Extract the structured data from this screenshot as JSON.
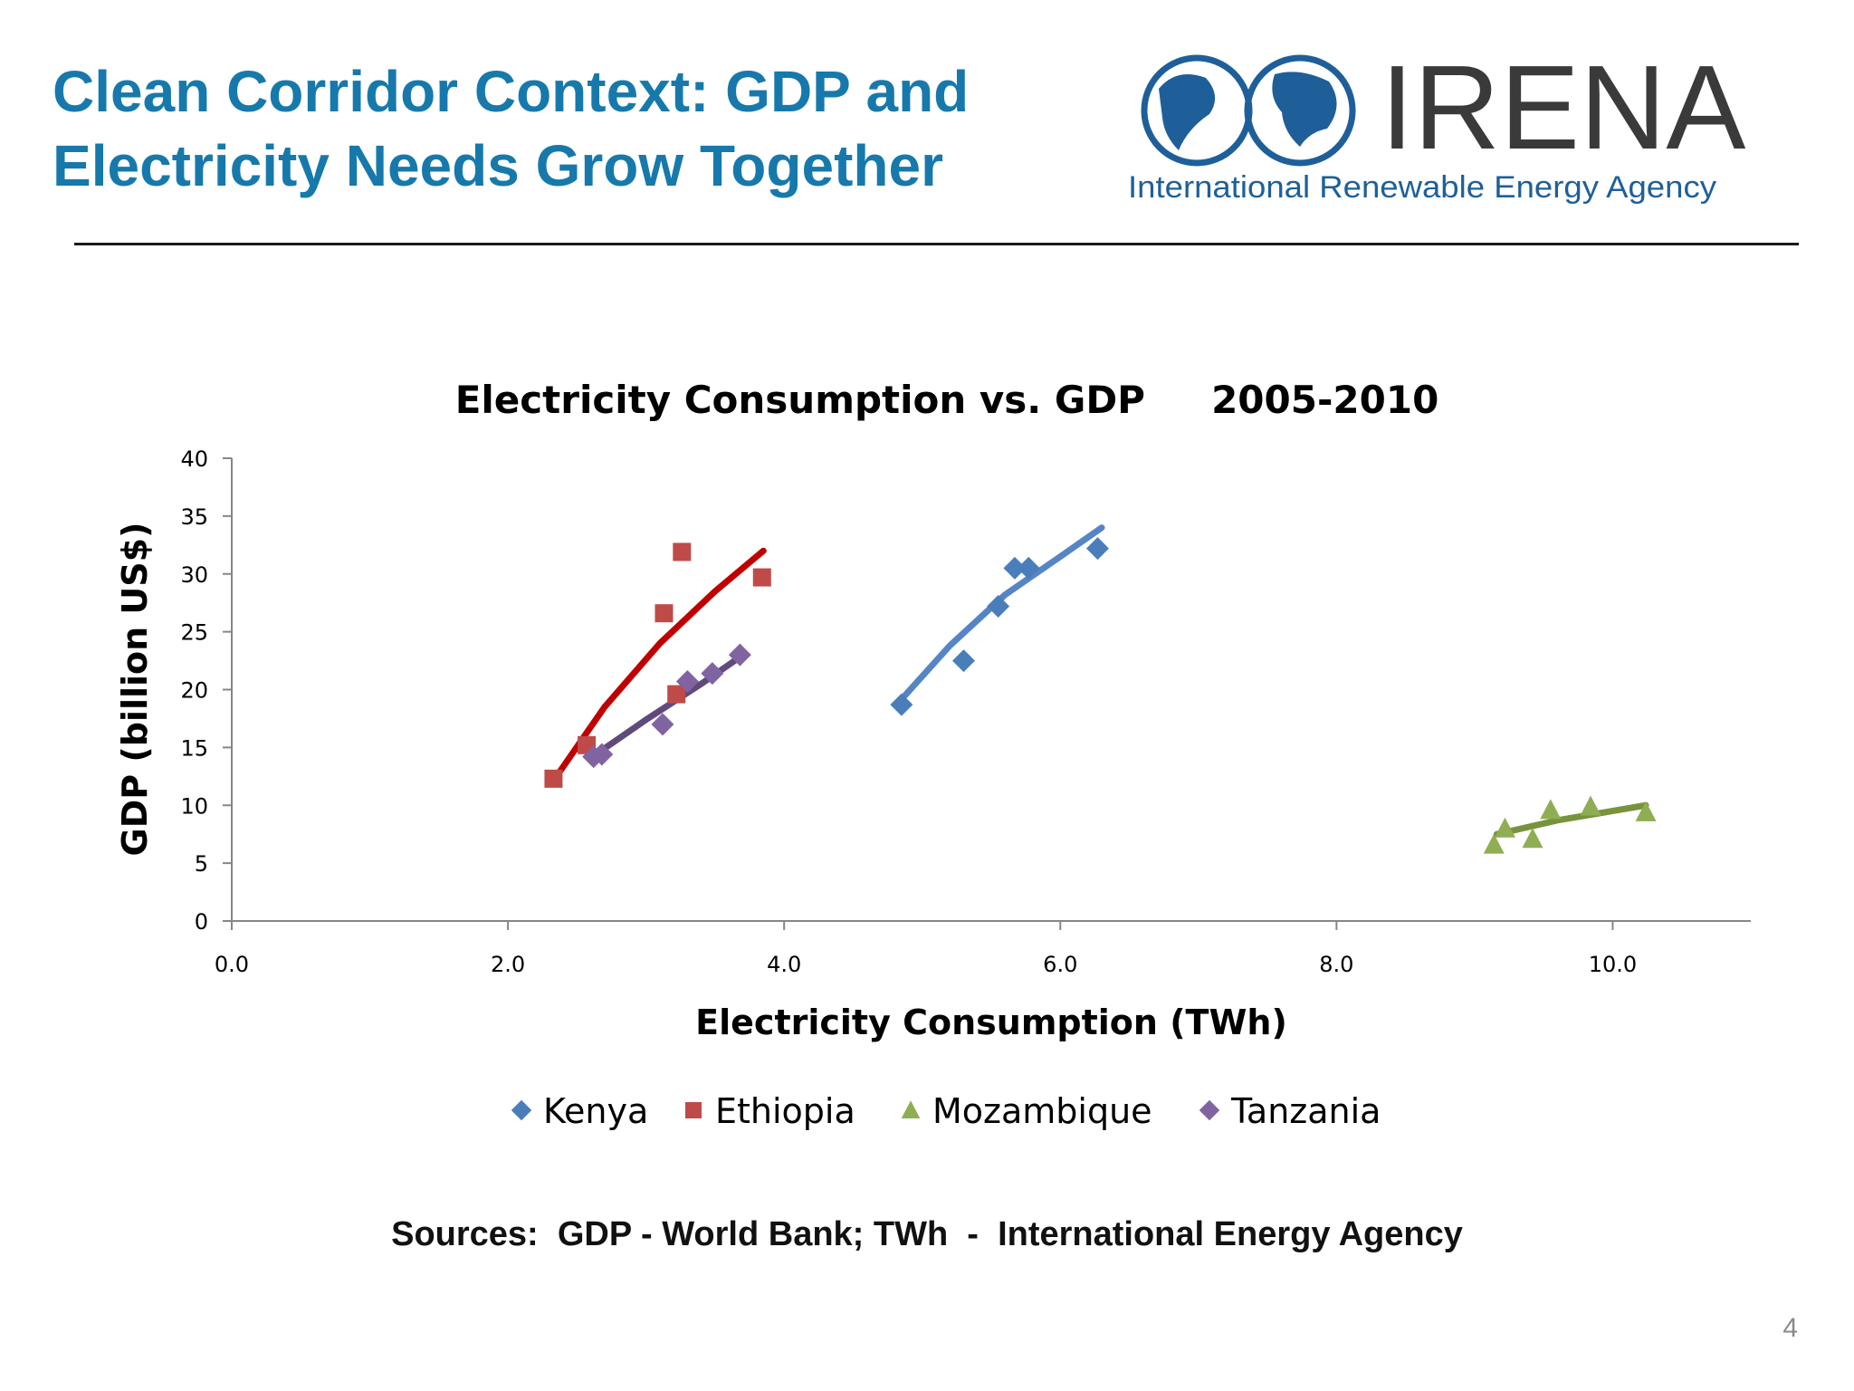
{
  "slide": {
    "title_line1": "Clean Corridor Context: GDP and",
    "title_line2": "Electricity Needs Grow Together",
    "sources": "Sources:  GDP - World Bank; TWh  -  International Energy Agency",
    "page_number": "4"
  },
  "logo": {
    "wordmark": "IRENA",
    "tagline": "International Renewable Energy Agency",
    "color": "#1E5F9A",
    "wordmark_color": "#3A3A3A"
  },
  "chart_data": {
    "type": "scatter",
    "title": "Electricity Consumption vs. GDP     2005-2010",
    "xlabel": "Electricity Consumption (TWh)",
    "ylabel": "GDP (billion US$)",
    "xlim": [
      0,
      11
    ],
    "ylim": [
      0,
      40
    ],
    "xticks": [
      "0.0",
      "2.0",
      "4.0",
      "6.0",
      "8.0",
      "10.0"
    ],
    "xtick_values": [
      0,
      2,
      4,
      6,
      8,
      10
    ],
    "yticks": [
      "0",
      "5",
      "10",
      "15",
      "20",
      "25",
      "30",
      "35",
      "40"
    ],
    "ytick_values": [
      0,
      5,
      10,
      15,
      20,
      25,
      30,
      35,
      40
    ],
    "grid": false,
    "legend": "bottom",
    "series": [
      {
        "name": "Kenya",
        "marker": "diamond",
        "color": "#4A7EBB",
        "trend_color": "#5585C5",
        "x": [
          4.85,
          5.3,
          5.55,
          5.67,
          5.77,
          6.27
        ],
        "y": [
          18.7,
          22.5,
          27.2,
          30.5,
          30.5,
          32.2
        ],
        "trend": {
          "x": [
            4.83,
            5.2,
            5.6,
            6.0,
            6.3
          ],
          "y": [
            18.9,
            23.8,
            28.2,
            31.5,
            34.0
          ]
        }
      },
      {
        "name": "Ethiopia",
        "marker": "square",
        "color": "#BE4B48",
        "trend_color": "#C00000",
        "x": [
          2.33,
          2.57,
          3.13,
          3.22,
          3.26,
          3.84
        ],
        "y": [
          12.3,
          15.2,
          26.6,
          19.6,
          31.9,
          29.7
        ],
        "trend": {
          "x": [
            2.34,
            2.7,
            3.1,
            3.5,
            3.85
          ],
          "y": [
            12.3,
            18.5,
            24.0,
            28.5,
            32.0
          ]
        }
      },
      {
        "name": "Mozambique",
        "marker": "triangle",
        "color": "#8FAE53",
        "trend_color": "#77933C",
        "x": [
          9.14,
          9.22,
          9.42,
          9.55,
          9.84,
          10.24
        ],
        "y": [
          6.6,
          8.0,
          7.1,
          9.6,
          9.9,
          9.4
        ],
        "trend": {
          "x": [
            9.16,
            9.6,
            10.24
          ],
          "y": [
            7.5,
            8.7,
            10.0
          ]
        }
      },
      {
        "name": "Tanzania",
        "marker": "diamond",
        "color": "#8064A2",
        "trend_color": "#604A7B",
        "x": [
          2.62,
          2.68,
          3.12,
          3.3,
          3.48,
          3.68
        ],
        "y": [
          14.2,
          14.4,
          17.0,
          20.7,
          21.4,
          23.0
        ],
        "trend": {
          "x": [
            2.6,
            3.0,
            3.4,
            3.69
          ],
          "y": [
            14.1,
            17.4,
            20.5,
            22.9
          ]
        }
      }
    ]
  }
}
